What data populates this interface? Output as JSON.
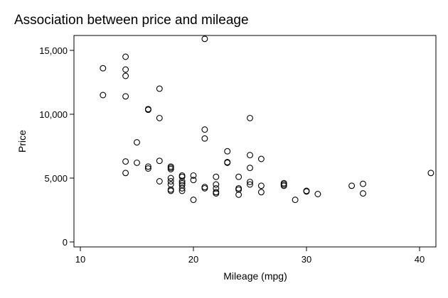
{
  "chart_data": {
    "type": "scatter",
    "title": "Association between price and mileage",
    "xlabel": "Mileage (mpg)",
    "ylabel": "Price",
    "xlim": [
      10,
      41
    ],
    "ylim": [
      0,
      16000
    ],
    "xticks": [
      10,
      20,
      30,
      40
    ],
    "xtick_labels": [
      "10",
      "20",
      "30",
      "40"
    ],
    "yticks": [
      0,
      5000,
      10000,
      15000
    ],
    "ytick_labels": [
      "0",
      "5,000",
      "10,000",
      "15,000"
    ],
    "grid": false,
    "legend": "none",
    "marker": "hollow-circle",
    "marker_color": "#000000",
    "points": [
      {
        "x": 12,
        "y": 13600
      },
      {
        "x": 12,
        "y": 11500
      },
      {
        "x": 14,
        "y": 14500
      },
      {
        "x": 14,
        "y": 13500
      },
      {
        "x": 14,
        "y": 13000
      },
      {
        "x": 14,
        "y": 11400
      },
      {
        "x": 14,
        "y": 6300
      },
      {
        "x": 14,
        "y": 5400
      },
      {
        "x": 15,
        "y": 7800
      },
      {
        "x": 15,
        "y": 6200
      },
      {
        "x": 16,
        "y": 10400
      },
      {
        "x": 16,
        "y": 10350
      },
      {
        "x": 16,
        "y": 5900
      },
      {
        "x": 16,
        "y": 5750
      },
      {
        "x": 17,
        "y": 12000
      },
      {
        "x": 17,
        "y": 9700
      },
      {
        "x": 17,
        "y": 6350
      },
      {
        "x": 17,
        "y": 4750
      },
      {
        "x": 18,
        "y": 5900
      },
      {
        "x": 18,
        "y": 5800
      },
      {
        "x": 18,
        "y": 5700
      },
      {
        "x": 18,
        "y": 5000
      },
      {
        "x": 18,
        "y": 4750
      },
      {
        "x": 18,
        "y": 4500
      },
      {
        "x": 18,
        "y": 4100
      },
      {
        "x": 18,
        "y": 4000
      },
      {
        "x": 19,
        "y": 5200
      },
      {
        "x": 19,
        "y": 5100
      },
      {
        "x": 19,
        "y": 4750
      },
      {
        "x": 19,
        "y": 4600
      },
      {
        "x": 19,
        "y": 4450
      },
      {
        "x": 19,
        "y": 4200
      },
      {
        "x": 19,
        "y": 4000
      },
      {
        "x": 20,
        "y": 5200
      },
      {
        "x": 20,
        "y": 4850
      },
      {
        "x": 20,
        "y": 3300
      },
      {
        "x": 21,
        "y": 15900
      },
      {
        "x": 21,
        "y": 8800
      },
      {
        "x": 21,
        "y": 8100
      },
      {
        "x": 21,
        "y": 4300
      },
      {
        "x": 21,
        "y": 4200
      },
      {
        "x": 22,
        "y": 5100
      },
      {
        "x": 22,
        "y": 4500
      },
      {
        "x": 22,
        "y": 4200
      },
      {
        "x": 22,
        "y": 3900
      },
      {
        "x": 22,
        "y": 3800
      },
      {
        "x": 23,
        "y": 7100
      },
      {
        "x": 23,
        "y": 6250
      },
      {
        "x": 23,
        "y": 6200
      },
      {
        "x": 24,
        "y": 5100
      },
      {
        "x": 24,
        "y": 4200
      },
      {
        "x": 24,
        "y": 4100
      },
      {
        "x": 24,
        "y": 3700
      },
      {
        "x": 25,
        "y": 9700
      },
      {
        "x": 25,
        "y": 6800
      },
      {
        "x": 25,
        "y": 5800
      },
      {
        "x": 25,
        "y": 4700
      },
      {
        "x": 25,
        "y": 4500
      },
      {
        "x": 26,
        "y": 6500
      },
      {
        "x": 26,
        "y": 4400
      },
      {
        "x": 26,
        "y": 3900
      },
      {
        "x": 28,
        "y": 4600
      },
      {
        "x": 28,
        "y": 4500
      },
      {
        "x": 28,
        "y": 4400
      },
      {
        "x": 29,
        "y": 3300
      },
      {
        "x": 30,
        "y": 4000
      },
      {
        "x": 30,
        "y": 3950
      },
      {
        "x": 31,
        "y": 3750
      },
      {
        "x": 34,
        "y": 4400
      },
      {
        "x": 35,
        "y": 4550
      },
      {
        "x": 35,
        "y": 3800
      },
      {
        "x": 41,
        "y": 5400
      }
    ]
  }
}
